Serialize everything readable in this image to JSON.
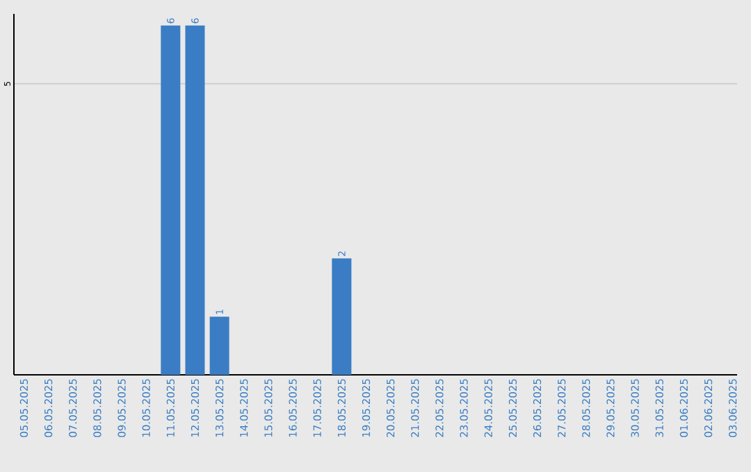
{
  "chart_data": {
    "type": "bar",
    "categories": [
      "05.05.2025",
      "06.05.2025",
      "07.05.2025",
      "08.05.2025",
      "09.05.2025",
      "10.05.2025",
      "11.05.2025",
      "12.05.2025",
      "13.05.2025",
      "14.05.2025",
      "15.05.2025",
      "16.05.2025",
      "17.05.2025",
      "18.05.2025",
      "19.05.2025",
      "20.05.2025",
      "21.05.2025",
      "22.05.2025",
      "23.05.2025",
      "24.05.2025",
      "25.05.2025",
      "26.05.2025",
      "27.05.2025",
      "28.05.2025",
      "29.05.2025",
      "30.05.2025",
      "31.05.2025",
      "01.06.2025",
      "02.06.2025",
      "03.06.2025"
    ],
    "values": [
      0,
      0,
      0,
      0,
      0,
      0,
      6,
      6,
      1,
      0,
      0,
      0,
      0,
      2,
      0,
      0,
      0,
      0,
      0,
      0,
      0,
      0,
      0,
      0,
      0,
      0,
      0,
      0,
      0,
      0
    ],
    "value_labels": [
      null,
      null,
      null,
      null,
      null,
      null,
      "6",
      "6",
      "1",
      null,
      null,
      null,
      null,
      "2",
      null,
      null,
      null,
      null,
      null,
      null,
      null,
      null,
      null,
      null,
      null,
      null,
      null,
      null,
      null,
      null
    ],
    "color": "#3a7dc4",
    "ylim": [
      0,
      6.2
    ],
    "yticks": [
      5
    ],
    "grid": "y"
  }
}
